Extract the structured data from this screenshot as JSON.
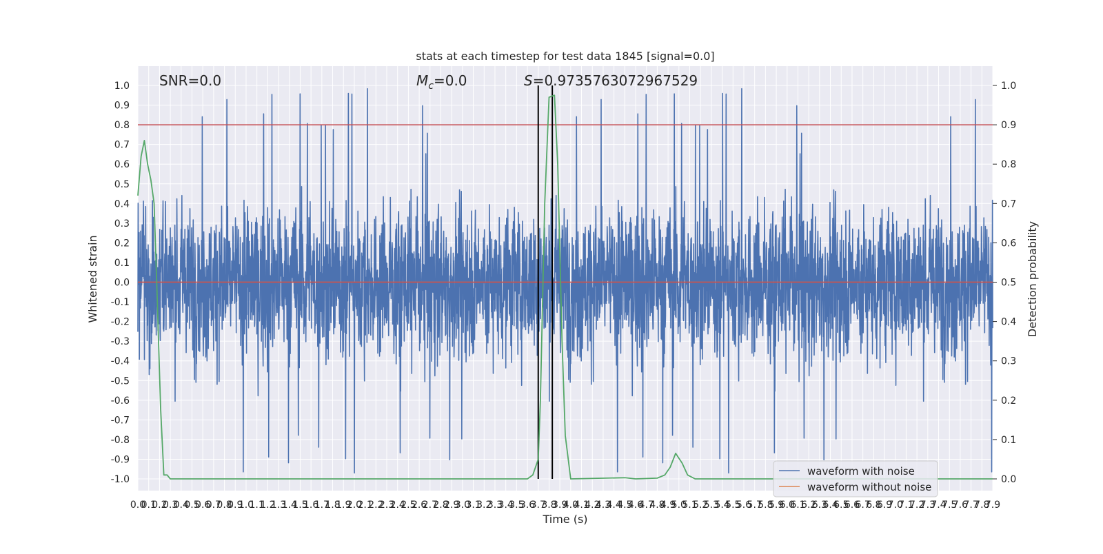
{
  "chart_data": {
    "type": "line",
    "title": "stats at each timestep for test data 1845 [signal=0.0]",
    "xlabel": "Time (s)",
    "ylabel_left": "Whitened strain",
    "ylabel_right": "Detection probability",
    "xlim": [
      0.0,
      7.9
    ],
    "ylim_left": [
      -1.0,
      1.0
    ],
    "ylim_right": [
      0.0,
      1.0
    ],
    "grid": true,
    "legend_position": "lower-right",
    "x_ticks": [
      "0.0",
      "0.1",
      "0.2",
      "0.3",
      "0.4",
      "0.5",
      "0.6",
      "0.7",
      "0.8",
      "0.9",
      "1.0",
      "1.1",
      "1.2",
      "1.3",
      "1.4",
      "1.5",
      "1.6",
      "1.7",
      "1.8",
      "1.9",
      "2.0",
      "2.1",
      "2.2",
      "2.3",
      "2.4",
      "2.5",
      "2.6",
      "2.7",
      "2.8",
      "2.9",
      "3.0",
      "3.1",
      "3.2",
      "3.3",
      "3.4",
      "3.5",
      "3.6",
      "3.7",
      "3.8",
      "3.9",
      "4.0",
      "4.1",
      "4.2",
      "4.3",
      "4.4",
      "4.5",
      "4.6",
      "4.7",
      "4.8",
      "4.9",
      "5.0",
      "5.1",
      "5.2",
      "5.3",
      "5.4",
      "5.5",
      "5.6",
      "5.7",
      "5.8",
      "5.9",
      "6.0",
      "6.1",
      "6.2",
      "6.3",
      "6.4",
      "6.5",
      "6.6",
      "6.7",
      "6.8",
      "6.9",
      "7.0",
      "7.1",
      "7.2",
      "7.3",
      "7.4",
      "7.5",
      "7.6",
      "7.7",
      "7.8",
      "7.9"
    ],
    "y_ticks_left": [
      "1.0",
      "0.9",
      "0.8",
      "0.7",
      "0.6",
      "0.5",
      "0.4",
      "0.3",
      "0.2",
      "0.1",
      "0.0",
      "-0.1",
      "-0.2",
      "-0.3",
      "-0.4",
      "-0.5",
      "-0.6",
      "-0.7",
      "-0.8",
      "-0.9",
      "-1.0"
    ],
    "y_ticks_right": [
      "1.0",
      "0.9",
      "0.8",
      "0.7",
      "0.6",
      "0.5",
      "0.4",
      "0.3",
      "0.2",
      "0.1",
      "0.0"
    ],
    "annotations": {
      "snr": "SNR=0.0",
      "mc_symbol": "M",
      "mc_sub": "c",
      "mc_value": "=0.0",
      "s_symbol": "S",
      "s_value": "=0.9735763072967529"
    },
    "series": [
      {
        "name": "waveform with noise",
        "color": "#4c72b0",
        "axis": "left",
        "description_values": "dense noise, roughly between -0.7 and 0.75, with spikes up to 1.0 and down to -0.95"
      },
      {
        "name": "waveform without noise",
        "color": "#dd8452",
        "axis": "left",
        "y": 0.0
      },
      {
        "name": "detection probability",
        "color": "#55a868",
        "axis": "right",
        "x": [
          0.0,
          0.03,
          0.06,
          0.09,
          0.12,
          0.15,
          0.18,
          0.21,
          0.24,
          0.27,
          0.3,
          0.4,
          1.0,
          2.0,
          3.0,
          3.2,
          3.5,
          3.6,
          3.65,
          3.7,
          3.72,
          3.76,
          3.8,
          3.85,
          3.88,
          3.92,
          3.95,
          4.0,
          4.5,
          4.6,
          4.8,
          4.87,
          4.92,
          4.97,
          5.03,
          5.08,
          5.15,
          5.3,
          6.0,
          7.0,
          7.9
        ],
        "y": [
          0.72,
          0.82,
          0.86,
          0.8,
          0.76,
          0.7,
          0.45,
          0.18,
          0.01,
          0.01,
          0.0,
          0.0,
          0.0,
          0.0,
          0.0,
          0.0,
          0.0,
          0.0,
          0.01,
          0.05,
          0.2,
          0.7,
          0.97,
          0.975,
          0.8,
          0.35,
          0.11,
          0.0,
          0.003,
          0.0,
          0.002,
          0.01,
          0.03,
          0.065,
          0.04,
          0.01,
          0.0,
          0.0,
          0.0,
          0.0,
          0.0
        ]
      }
    ],
    "thresholds": [
      {
        "color": "#c44e52",
        "axis": "right",
        "y": 0.9
      },
      {
        "color": "#c44e52",
        "axis": "left",
        "y": 0.0
      }
    ],
    "vertical_markers": {
      "color": "#000000",
      "x": [
        3.7,
        3.83
      ]
    }
  },
  "colors": {
    "plot_background": "#eaeaf2",
    "grid": "#ffffff",
    "text": "#262626"
  }
}
